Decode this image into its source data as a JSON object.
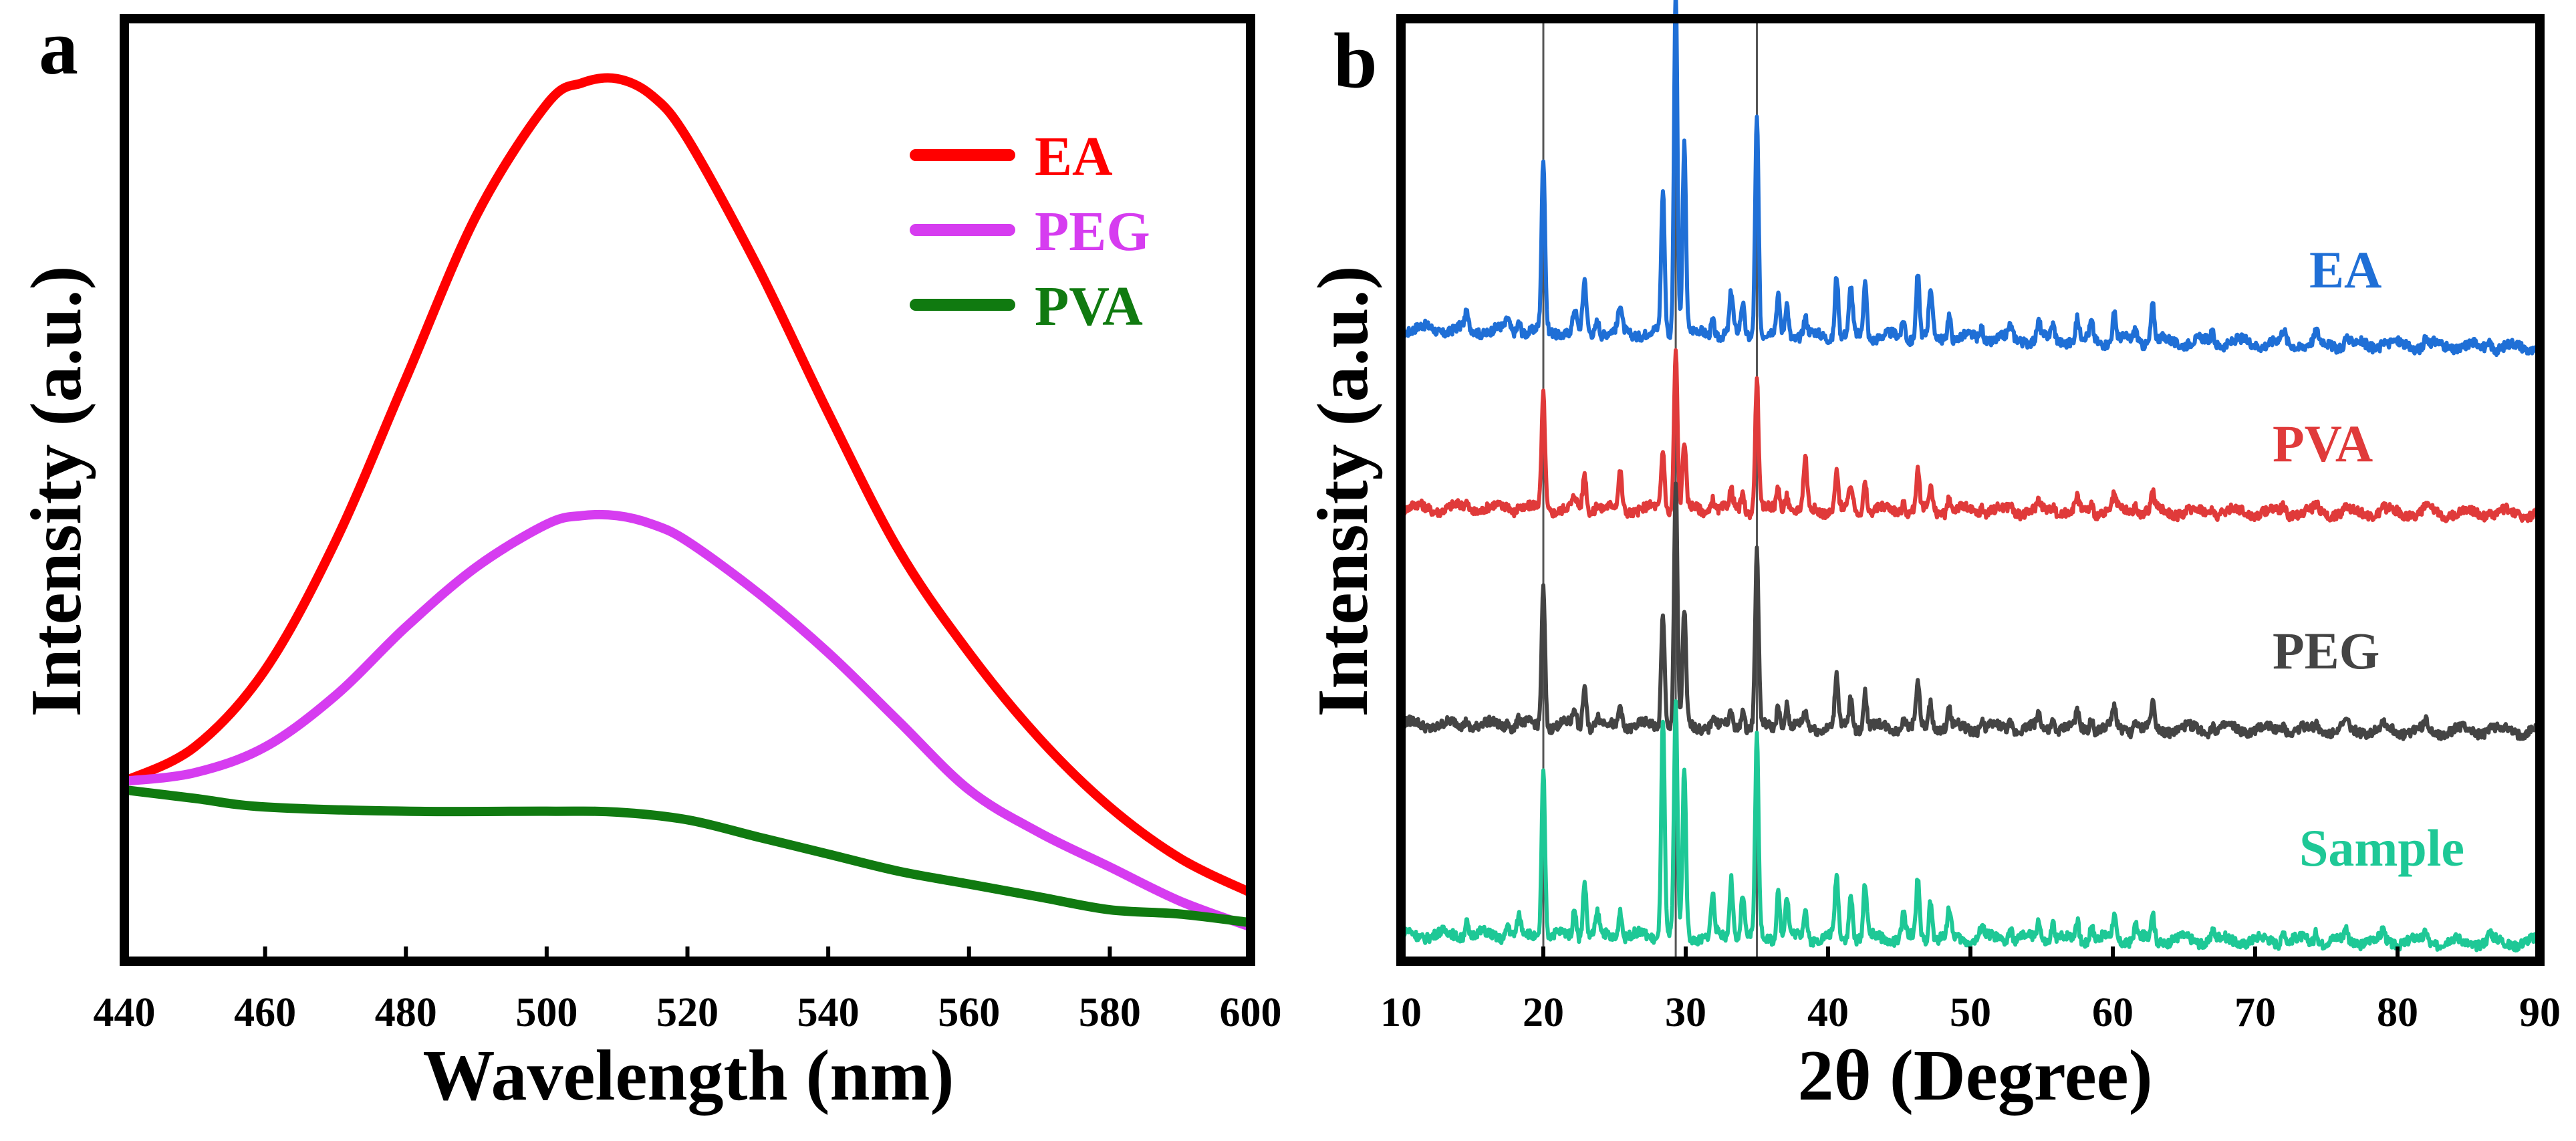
{
  "chart_data": [
    {
      "type": "line",
      "panel_label": "a",
      "title": "",
      "xlabel": "Wavelength (nm)",
      "ylabel": "Intensity (a.u.)",
      "xlim": [
        440,
        600
      ],
      "ylim": [
        0,
        1.1
      ],
      "x_ticks": [
        "440",
        "460",
        "480",
        "500",
        "520",
        "540",
        "560",
        "580",
        "600"
      ],
      "y_ticks": [],
      "grid": false,
      "legend_position": "top-right",
      "legend": [
        "EA",
        "PEG",
        "PVA"
      ],
      "series": [
        {
          "name": "EA",
          "color": "#ff0000",
          "x": [
            440,
            450,
            460,
            470,
            480,
            490,
            500,
            505,
            510,
            515,
            520,
            530,
            540,
            550,
            560,
            570,
            580,
            590,
            600
          ],
          "values": [
            0.21,
            0.25,
            0.34,
            0.49,
            0.68,
            0.87,
            1.0,
            1.025,
            1.03,
            1.01,
            0.96,
            0.81,
            0.64,
            0.48,
            0.36,
            0.26,
            0.18,
            0.12,
            0.08
          ]
        },
        {
          "name": "PEG",
          "color": "#d63cf0",
          "x": [
            440,
            450,
            460,
            470,
            480,
            490,
            500,
            505,
            510,
            515,
            520,
            530,
            540,
            550,
            560,
            570,
            580,
            590,
            600
          ],
          "values": [
            0.21,
            0.22,
            0.25,
            0.31,
            0.39,
            0.46,
            0.51,
            0.52,
            0.52,
            0.51,
            0.49,
            0.43,
            0.36,
            0.28,
            0.2,
            0.15,
            0.11,
            0.07,
            0.04
          ]
        },
        {
          "name": "PVA",
          "color": "#107a10",
          "x": [
            440,
            450,
            460,
            480,
            500,
            510,
            520,
            530,
            540,
            550,
            560,
            570,
            580,
            590,
            600
          ],
          "values": [
            0.2,
            0.19,
            0.18,
            0.175,
            0.175,
            0.174,
            0.165,
            0.145,
            0.125,
            0.105,
            0.09,
            0.075,
            0.06,
            0.055,
            0.045
          ]
        }
      ]
    },
    {
      "type": "line",
      "panel_label": "b",
      "title": "",
      "xlabel": "2θ (Degree)",
      "ylabel": "Intensity (a.u.)",
      "xlim": [
        10,
        90
      ],
      "x_ticks": [
        "10",
        "20",
        "30",
        "40",
        "50",
        "60",
        "70",
        "80",
        "90"
      ],
      "y_ticks": [],
      "grid": false,
      "reference_lines_x": [
        20,
        29.3,
        35
      ],
      "peak_positions": [
        14.6,
        17.5,
        18.3,
        20.0,
        22.2,
        22.9,
        23.8,
        25.4,
        28.4,
        29.3,
        29.9,
        31.9,
        33.2,
        34.0,
        35.0,
        36.5,
        37.1,
        38.4,
        40.6,
        41.6,
        42.6,
        45.3,
        46.3,
        47.2,
        48.5,
        50.8,
        52.8,
        54.8,
        55.8,
        57.5,
        58.5,
        60.1,
        61.6,
        62.8,
        67.0,
        72.0,
        74.3,
        76.4,
        79.0,
        82.0,
        86.5
      ],
      "series": [
        {
          "name": "EA",
          "color": "#1f6fd6",
          "baseline_start": 100,
          "baseline_end": 128,
          "peak_heights": [
            20,
            15,
            18,
            255,
            30,
            75,
            22,
            38,
            210,
            520,
            285,
            25,
            60,
            45,
            330,
            55,
            50,
            25,
            95,
            70,
            85,
            28,
            95,
            70,
            40,
            18,
            15,
            25,
            20,
            30,
            25,
            40,
            20,
            55,
            15,
            18,
            15,
            12,
            10,
            12,
            10
          ]
        },
        {
          "name": "PVA",
          "color": "#e03a3a",
          "baseline_start": 140,
          "baseline_end": 148,
          "peak_heights": [
            10,
            8,
            8,
            170,
            15,
            55,
            12,
            55,
            90,
            240,
            100,
            20,
            25,
            25,
            195,
            35,
            28,
            75,
            55,
            35,
            45,
            15,
            55,
            35,
            20,
            10,
            10,
            12,
            12,
            15,
            12,
            20,
            12,
            25,
            8,
            10,
            8,
            8,
            6,
            6,
            6
          ]
        },
        {
          "name": "PEG",
          "color": "#444444",
          "baseline_start": 100,
          "baseline_end": 110,
          "peak_heights": [
            10,
            10,
            10,
            210,
            25,
            65,
            15,
            35,
            175,
            360,
            170,
            15,
            20,
            30,
            260,
            35,
            35,
            20,
            75,
            45,
            55,
            20,
            65,
            40,
            25,
            12,
            12,
            20,
            15,
            20,
            18,
            30,
            15,
            35,
            10,
            12,
            12,
            10,
            8,
            10,
            8
          ]
        },
        {
          "name": "Sample",
          "color": "#1ec896",
          "baseline_start": 60,
          "baseline_end": 72,
          "peak_heights": [
            25,
            20,
            25,
            250,
            45,
            85,
            30,
            45,
            330,
            345,
            250,
            60,
            90,
            65,
            295,
            70,
            60,
            45,
            90,
            70,
            80,
            35,
            85,
            60,
            40,
            20,
            20,
            30,
            25,
            30,
            25,
            35,
            20,
            40,
            15,
            20,
            18,
            18,
            15,
            15,
            12
          ]
        }
      ]
    }
  ]
}
